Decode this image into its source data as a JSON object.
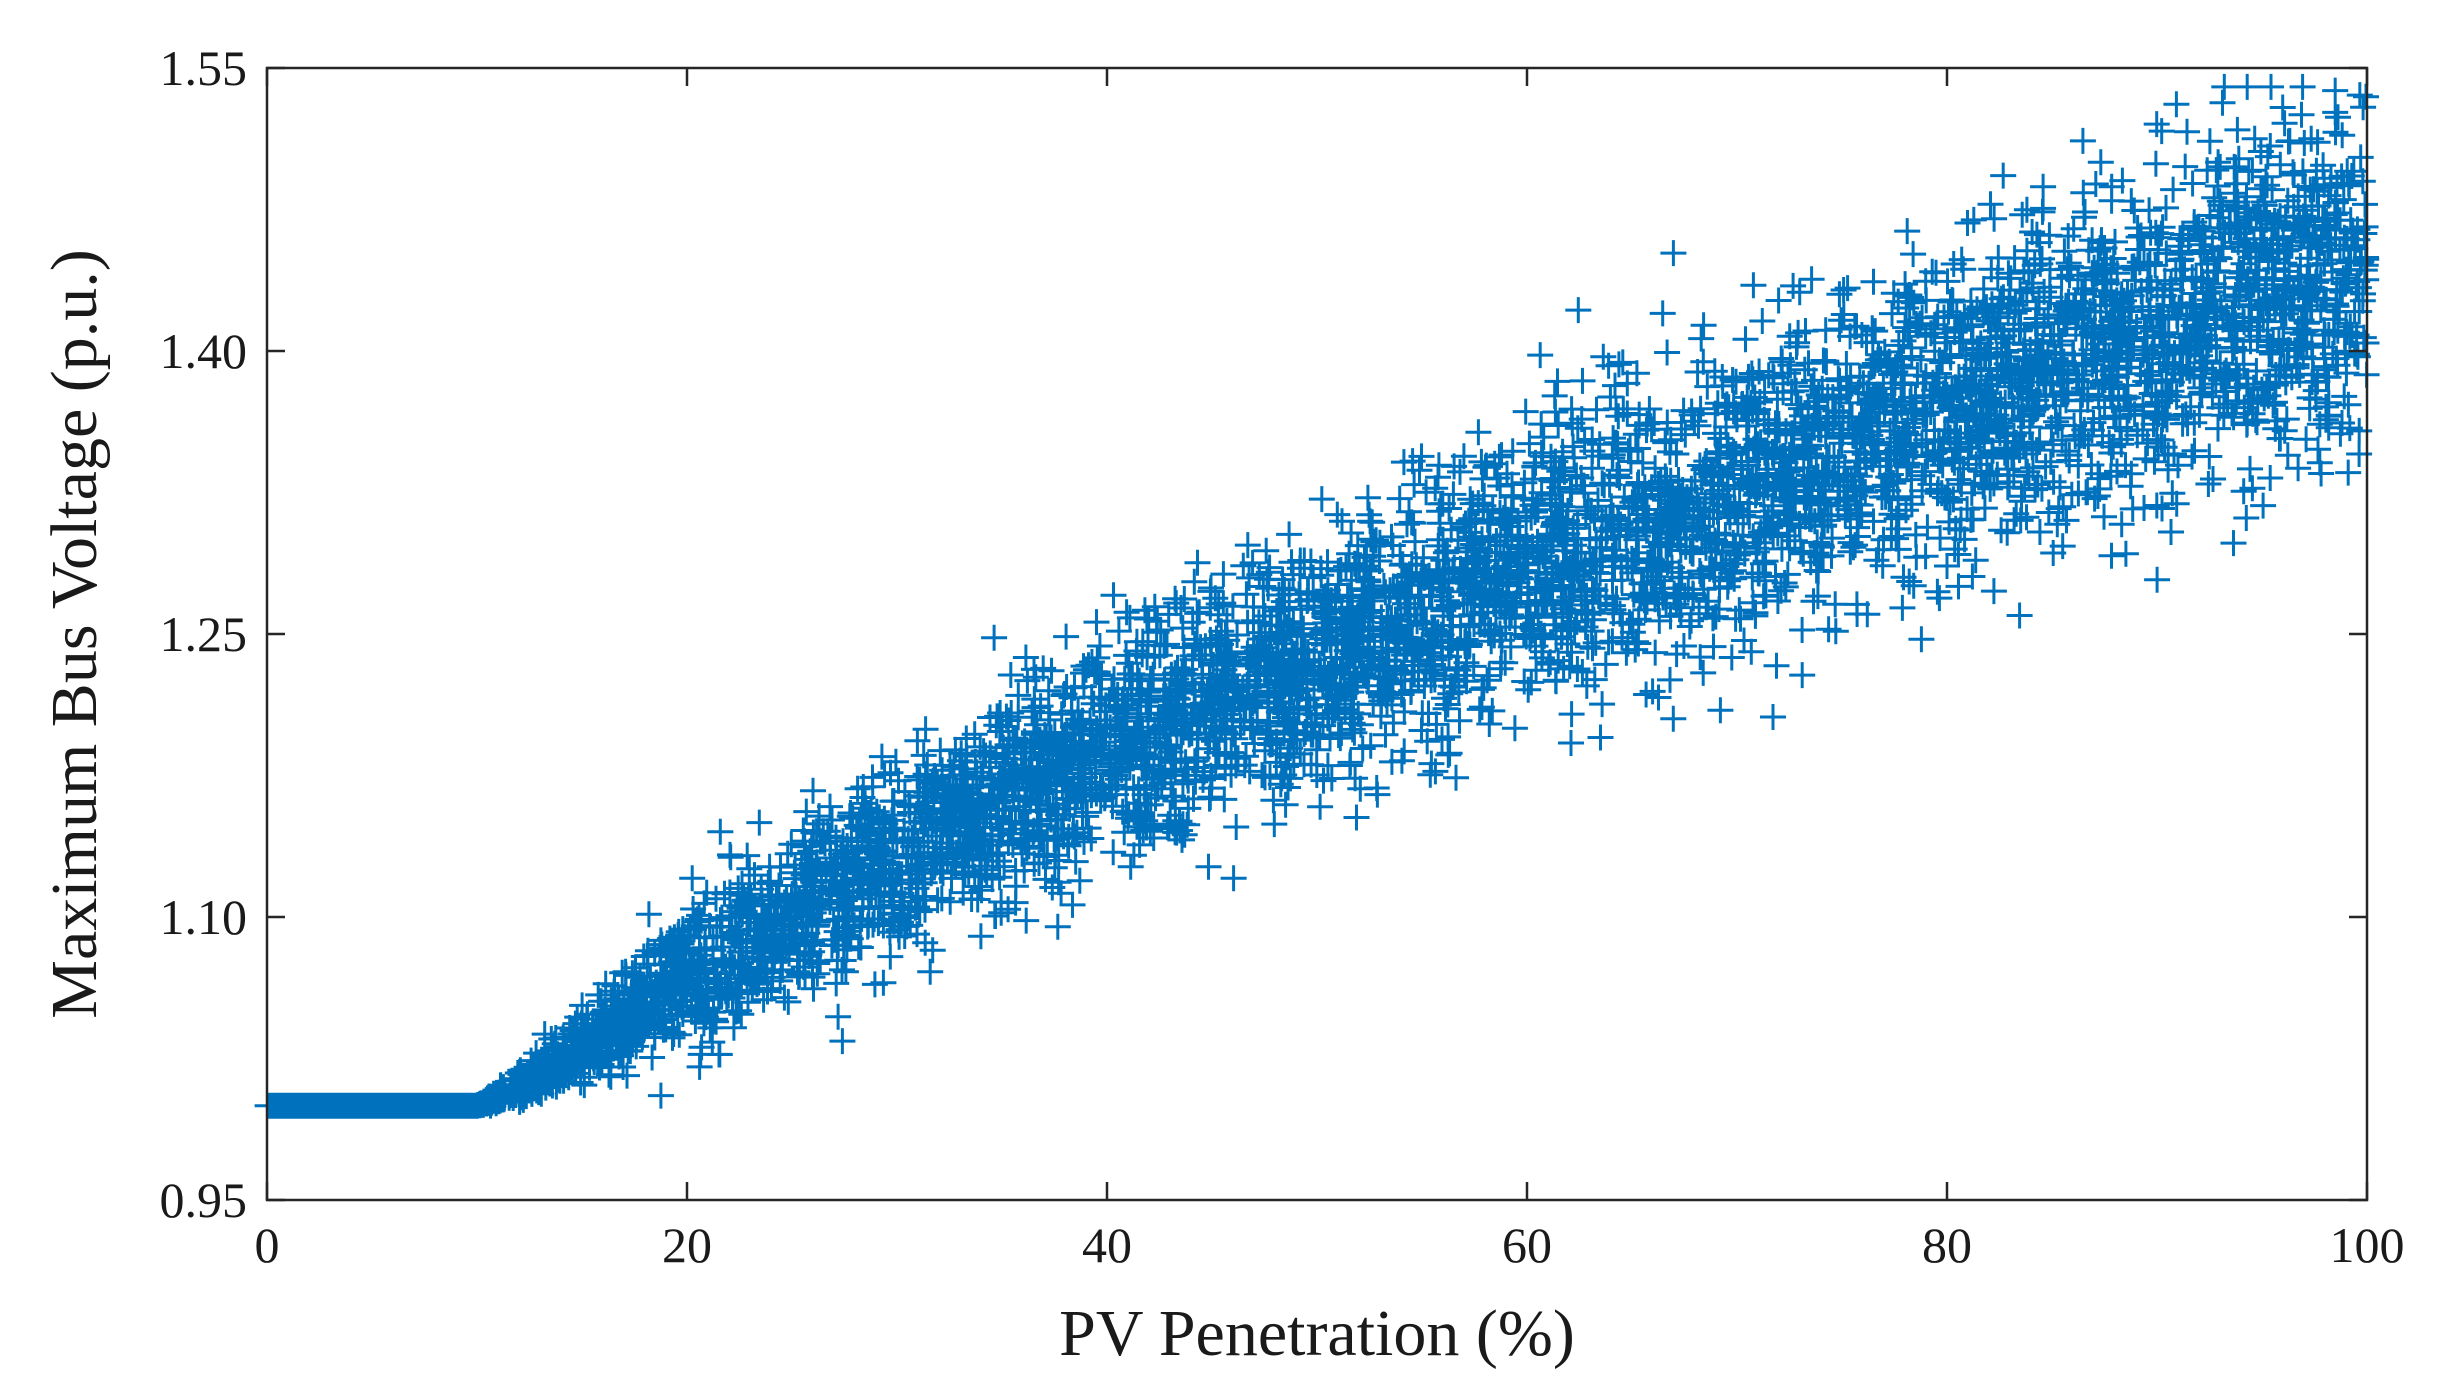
{
  "chart_data": {
    "type": "scatter",
    "title": "",
    "xlabel": "PV Penetration (%)",
    "ylabel": "Maximum Bus Voltage (p.u.)",
    "xlim": [
      0,
      100
    ],
    "ylim": [
      0.95,
      1.55
    ],
    "xticks": [
      0,
      20,
      40,
      60,
      80,
      100
    ],
    "xtick_labels": [
      "0",
      "20",
      "40",
      "60",
      "80",
      "100"
    ],
    "yticks": [
      0.95,
      1.1,
      1.25,
      1.4,
      1.55
    ],
    "ytick_labels": [
      "0.95",
      "1.10",
      "1.25",
      "1.40",
      "1.55"
    ],
    "grid": false,
    "marker": "+",
    "series": [
      {
        "name": "Maximum bus voltage",
        "color": "#0072BD",
        "trend_points": [
          {
            "x": 0,
            "y": 1.0
          },
          {
            "x": 10,
            "y": 1.0
          },
          {
            "x": 12,
            "y": 1.01
          },
          {
            "x": 15,
            "y": 1.03
          },
          {
            "x": 20,
            "y": 1.07
          },
          {
            "x": 25,
            "y": 1.1
          },
          {
            "x": 30,
            "y": 1.13
          },
          {
            "x": 35,
            "y": 1.16
          },
          {
            "x": 40,
            "y": 1.185
          },
          {
            "x": 45,
            "y": 1.21
          },
          {
            "x": 50,
            "y": 1.235
          },
          {
            "x": 55,
            "y": 1.26
          },
          {
            "x": 60,
            "y": 1.285
          },
          {
            "x": 65,
            "y": 1.305
          },
          {
            "x": 70,
            "y": 1.325
          },
          {
            "x": 75,
            "y": 1.345
          },
          {
            "x": 80,
            "y": 1.37
          },
          {
            "x": 85,
            "y": 1.39
          },
          {
            "x": 90,
            "y": 1.41
          },
          {
            "x": 95,
            "y": 1.43
          },
          {
            "x": 100,
            "y": 1.44
          }
        ],
        "spread": [
          {
            "x": 0,
            "s": 0.0
          },
          {
            "x": 10,
            "s": 0.0
          },
          {
            "x": 20,
            "s": 0.02
          },
          {
            "x": 40,
            "s": 0.03
          },
          {
            "x": 60,
            "s": 0.035
          },
          {
            "x": 80,
            "s": 0.04
          },
          {
            "x": 100,
            "s": 0.045
          }
        ],
        "n_points": 6000
      }
    ]
  }
}
